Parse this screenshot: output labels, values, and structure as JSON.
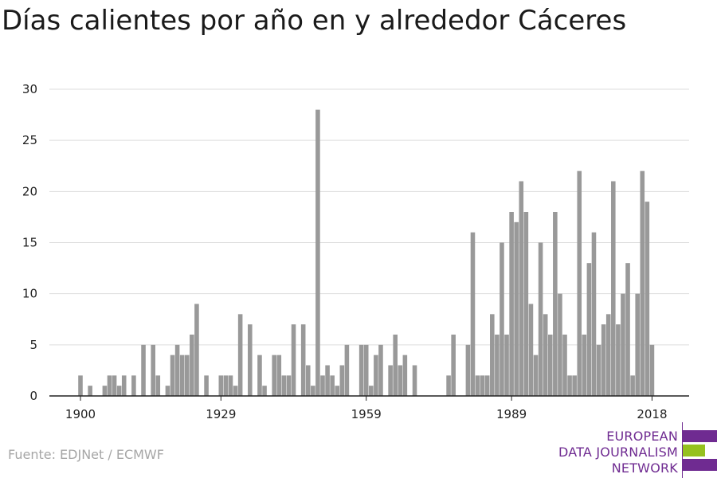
{
  "title": "Días calientes por año en y alrededor Cáceres",
  "source": "Fuente: EDJNet / ECMWF",
  "logo": {
    "lines": [
      "EUROPEAN",
      "DATA JOURNALISM",
      "NETWORK"
    ],
    "colors": {
      "purple": "#6f2b91",
      "green": "#95c11f"
    }
  },
  "chart_data": {
    "type": "bar",
    "title": "Días calientes por año en y alrededor Cáceres",
    "xlabel": "",
    "ylabel": "",
    "ylim": [
      0,
      30
    ],
    "yticks": [
      0,
      5,
      10,
      15,
      20,
      25,
      30
    ],
    "xticks": [
      1900,
      1929,
      1959,
      1989,
      2018
    ],
    "xlim": [
      1895.5,
      2021.5
    ],
    "grid": true,
    "bar_color": "#999999",
    "x": [
      1900,
      1902,
      1905,
      1906,
      1907,
      1908,
      1909,
      1911,
      1913,
      1915,
      1916,
      1918,
      1919,
      1920,
      1921,
      1922,
      1923,
      1924,
      1926,
      1929,
      1930,
      1931,
      1932,
      1933,
      1935,
      1937,
      1938,
      1940,
      1941,
      1942,
      1943,
      1944,
      1946,
      1947,
      1948,
      1949,
      1950,
      1951,
      1952,
      1953,
      1954,
      1955,
      1958,
      1959,
      1960,
      1961,
      1962,
      1964,
      1965,
      1966,
      1967,
      1969,
      1976,
      1977,
      1980,
      1981,
      1982,
      1983,
      1984,
      1985,
      1986,
      1987,
      1988,
      1989,
      1990,
      1991,
      1992,
      1993,
      1994,
      1995,
      1996,
      1997,
      1998,
      1999,
      2000,
      2001,
      2002,
      2003,
      2004,
      2005,
      2006,
      2007,
      2008,
      2009,
      2010,
      2011,
      2012,
      2013,
      2014,
      2015,
      2016,
      2017,
      2018
    ],
    "values": [
      2,
      1,
      1,
      2,
      2,
      1,
      2,
      2,
      5,
      5,
      2,
      1,
      4,
      5,
      4,
      4,
      6,
      9,
      2,
      2,
      2,
      2,
      1,
      8,
      7,
      4,
      1,
      4,
      4,
      2,
      2,
      7,
      7,
      3,
      1,
      28,
      2,
      3,
      2,
      1,
      3,
      5,
      5,
      5,
      1,
      4,
      5,
      3,
      6,
      3,
      4,
      3,
      2,
      6,
      5,
      16,
      2,
      2,
      2,
      8,
      6,
      15,
      6,
      18,
      17,
      21,
      18,
      9,
      4,
      15,
      8,
      6,
      18,
      10,
      6,
      2,
      2,
      22,
      6,
      13,
      16,
      5,
      7,
      8,
      21,
      7,
      10,
      13,
      2,
      10,
      22,
      19,
      5
    ]
  }
}
